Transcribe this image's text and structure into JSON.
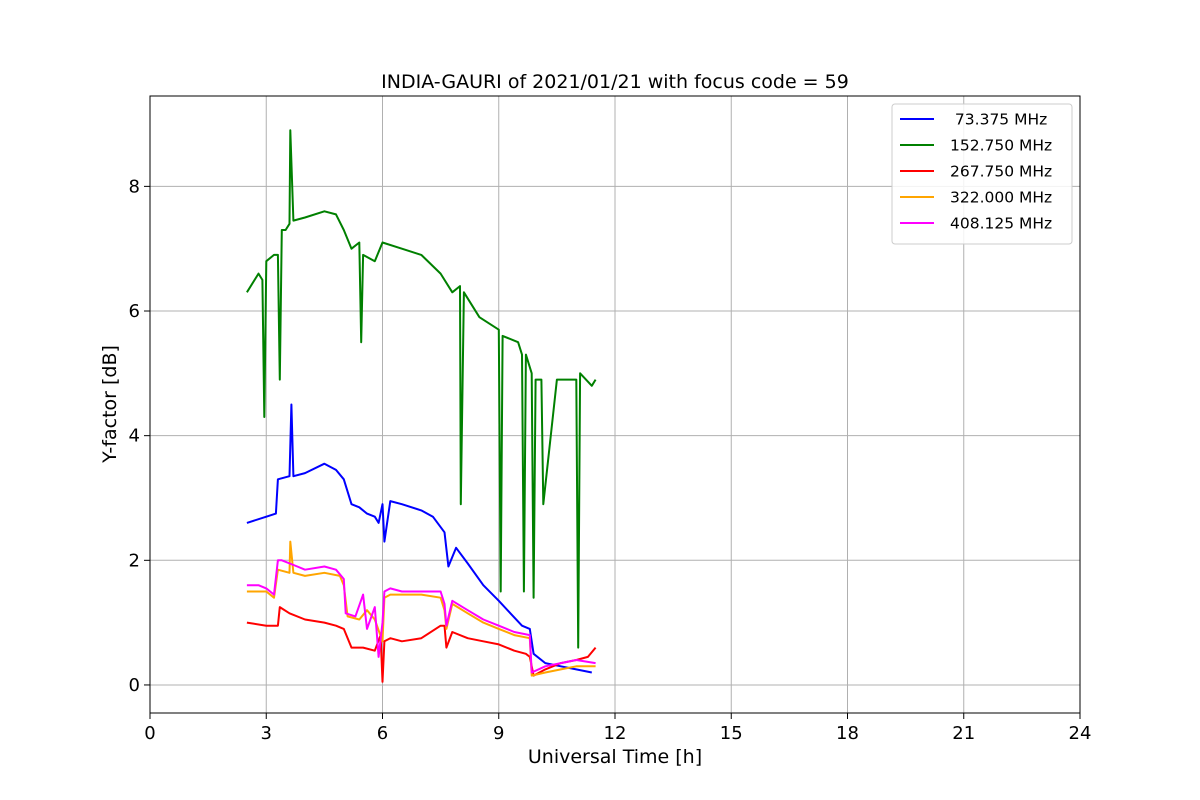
{
  "chart_data": {
    "type": "line",
    "title": "INDIA-GAURI of 2021/01/21 with focus code = 59",
    "xlabel": "Universal Time [h]",
    "ylabel": "Y-factor [dB]",
    "xlim": [
      0,
      24
    ],
    "ylim": [
      -0.45,
      9.45
    ],
    "xticks": [
      0,
      3,
      6,
      9,
      12,
      15,
      18,
      21,
      24
    ],
    "yticks": [
      0,
      2,
      4,
      6,
      8
    ],
    "xtick_labels": [
      "0",
      "3",
      "6",
      "9",
      "12",
      "15",
      "18",
      "21",
      "24"
    ],
    "ytick_labels": [
      "0",
      "2",
      "4",
      "6",
      "8"
    ],
    "grid": true,
    "legend_position": "top-right",
    "series": [
      {
        "name": " 73.375 MHz",
        "color": "#0000ff",
        "x": [
          2.5,
          3.0,
          3.25,
          3.3,
          3.6,
          3.65,
          3.7,
          4.0,
          4.5,
          4.8,
          5.0,
          5.2,
          5.4,
          5.6,
          5.8,
          5.9,
          6.0,
          6.05,
          6.2,
          6.5,
          7.0,
          7.3,
          7.6,
          7.7,
          7.9,
          8.2,
          8.6,
          9.0,
          9.3,
          9.6,
          9.8,
          9.9,
          10.2,
          10.6,
          11.0,
          11.4
        ],
        "y": [
          2.6,
          2.7,
          2.75,
          3.3,
          3.35,
          4.5,
          3.35,
          3.4,
          3.55,
          3.45,
          3.3,
          2.9,
          2.85,
          2.75,
          2.7,
          2.6,
          2.9,
          2.3,
          2.95,
          2.9,
          2.8,
          2.7,
          2.45,
          1.9,
          2.2,
          1.95,
          1.6,
          1.35,
          1.15,
          0.95,
          0.9,
          0.5,
          0.35,
          0.3,
          0.25,
          0.2
        ]
      },
      {
        "name": "152.750 MHz",
        "color": "#008000",
        "x": [
          2.5,
          2.8,
          2.9,
          2.95,
          3.0,
          3.2,
          3.3,
          3.35,
          3.4,
          3.5,
          3.6,
          3.62,
          3.7,
          4.0,
          4.5,
          4.8,
          5.0,
          5.2,
          5.4,
          5.45,
          5.5,
          5.8,
          6.0,
          6.5,
          7.0,
          7.5,
          7.8,
          8.0,
          8.02,
          8.1,
          8.5,
          9.0,
          9.05,
          9.1,
          9.5,
          9.6,
          9.65,
          9.7,
          9.85,
          9.9,
          9.95,
          10.1,
          10.15,
          10.5,
          11.0,
          11.05,
          11.1,
          11.4,
          11.5
        ],
        "y": [
          6.3,
          6.6,
          6.5,
          4.3,
          6.8,
          6.9,
          6.9,
          4.9,
          7.3,
          7.3,
          7.4,
          8.9,
          7.45,
          7.5,
          7.6,
          7.55,
          7.3,
          7.0,
          7.1,
          5.5,
          6.9,
          6.8,
          7.1,
          7.0,
          6.9,
          6.6,
          6.3,
          6.4,
          2.9,
          6.3,
          5.9,
          5.7,
          1.5,
          5.6,
          5.5,
          5.3,
          1.5,
          5.3,
          5.0,
          1.4,
          4.9,
          4.9,
          2.9,
          4.9,
          4.9,
          0.6,
          5.0,
          4.8,
          4.9
        ]
      },
      {
        "name": "267.750 MHz",
        "color": "#ff0000",
        "x": [
          2.5,
          3.0,
          3.3,
          3.35,
          3.6,
          4.0,
          4.5,
          4.8,
          5.0,
          5.2,
          5.5,
          5.8,
          5.95,
          6.0,
          6.05,
          6.2,
          6.5,
          7.0,
          7.5,
          7.6,
          7.65,
          7.8,
          8.2,
          8.6,
          9.0,
          9.4,
          9.7,
          9.8,
          9.9,
          10.2,
          10.6,
          11.0,
          11.3,
          11.5
        ],
        "y": [
          1.0,
          0.95,
          0.95,
          1.25,
          1.15,
          1.05,
          1.0,
          0.95,
          0.9,
          0.6,
          0.6,
          0.55,
          0.8,
          0.05,
          0.7,
          0.75,
          0.7,
          0.75,
          0.95,
          0.95,
          0.6,
          0.85,
          0.75,
          0.7,
          0.65,
          0.55,
          0.5,
          0.45,
          0.15,
          0.25,
          0.35,
          0.4,
          0.45,
          0.6
        ]
      },
      {
        "name": "322.000 MHz",
        "color": "#ffa500",
        "x": [
          2.5,
          3.0,
          3.2,
          3.3,
          3.6,
          3.62,
          3.7,
          4.0,
          4.5,
          4.9,
          5.0,
          5.1,
          5.4,
          5.6,
          5.8,
          6.0,
          6.05,
          6.2,
          6.5,
          7.0,
          7.5,
          7.6,
          7.65,
          7.8,
          8.2,
          8.6,
          9.0,
          9.4,
          9.8,
          9.85,
          10.2,
          10.6,
          11.0,
          11.5
        ],
        "y": [
          1.5,
          1.5,
          1.4,
          1.85,
          1.8,
          2.3,
          1.8,
          1.75,
          1.8,
          1.75,
          1.6,
          1.1,
          1.05,
          1.2,
          1.05,
          0.7,
          1.4,
          1.45,
          1.45,
          1.45,
          1.4,
          1.2,
          0.9,
          1.3,
          1.15,
          1.0,
          0.9,
          0.8,
          0.75,
          0.15,
          0.2,
          0.25,
          0.3,
          0.3
        ]
      },
      {
        "name": "408.125 MHz",
        "color": "#ff00ff",
        "x": [
          2.5,
          2.8,
          3.0,
          3.2,
          3.3,
          3.4,
          3.8,
          4.0,
          4.5,
          4.8,
          5.0,
          5.05,
          5.3,
          5.5,
          5.6,
          5.8,
          5.9,
          6.0,
          6.05,
          6.2,
          6.5,
          7.0,
          7.5,
          7.6,
          7.65,
          7.8,
          8.2,
          8.6,
          9.0,
          9.4,
          9.8,
          9.85,
          10.2,
          10.6,
          11.0,
          11.5
        ],
        "y": [
          1.6,
          1.6,
          1.55,
          1.45,
          2.0,
          2.0,
          1.9,
          1.85,
          1.9,
          1.85,
          1.7,
          1.15,
          1.1,
          1.45,
          0.9,
          1.25,
          0.45,
          1.0,
          1.5,
          1.55,
          1.5,
          1.5,
          1.5,
          1.3,
          0.95,
          1.35,
          1.2,
          1.05,
          0.95,
          0.85,
          0.8,
          0.2,
          0.3,
          0.35,
          0.4,
          0.35
        ]
      }
    ]
  }
}
